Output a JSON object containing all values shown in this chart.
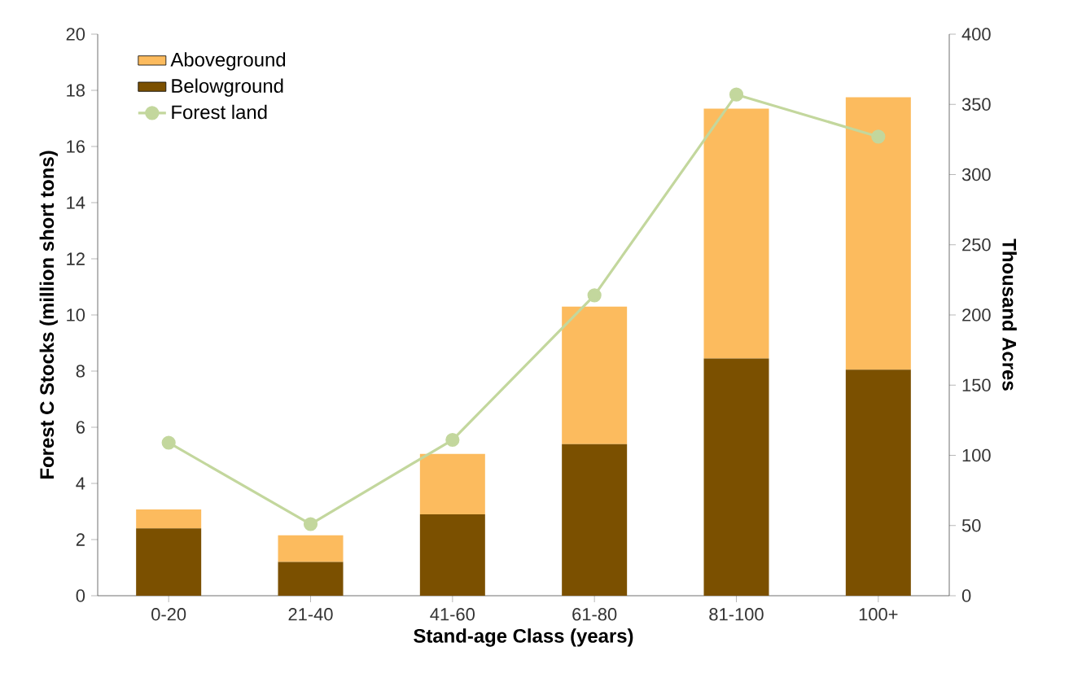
{
  "chart_data": {
    "type": "bar",
    "stacked": true,
    "xlabel": "Stand-age Class (years)",
    "ylabel": "Forest C Stocks (million short tons)",
    "y2label": "Thousand Acres",
    "categories": [
      "0-20",
      "21-40",
      "41-60",
      "61-80",
      "81-100",
      "100+"
    ],
    "series": [
      {
        "name": "Belowground",
        "color": "#7b5000",
        "values": [
          2.4,
          1.2,
          2.9,
          5.4,
          8.45,
          8.05
        ]
      },
      {
        "name": "Aboveground",
        "color": "#fcbb5e",
        "values": [
          0.67,
          0.95,
          2.15,
          4.9,
          8.9,
          9.7
        ]
      },
      {
        "name": "Forest land",
        "type": "line",
        "axis": "y2",
        "color": "#c3d79d",
        "marker": "circle",
        "values": [
          109,
          51,
          111,
          214,
          357,
          327
        ]
      }
    ],
    "ylim": [
      0,
      20
    ],
    "yticks": [
      0,
      2,
      4,
      6,
      8,
      10,
      12,
      14,
      16,
      18,
      20
    ],
    "y2lim": [
      0,
      400
    ],
    "y2ticks": [
      0,
      50,
      100,
      150,
      200,
      250,
      300,
      350,
      400
    ],
    "legend": "top left",
    "grid": false
  }
}
